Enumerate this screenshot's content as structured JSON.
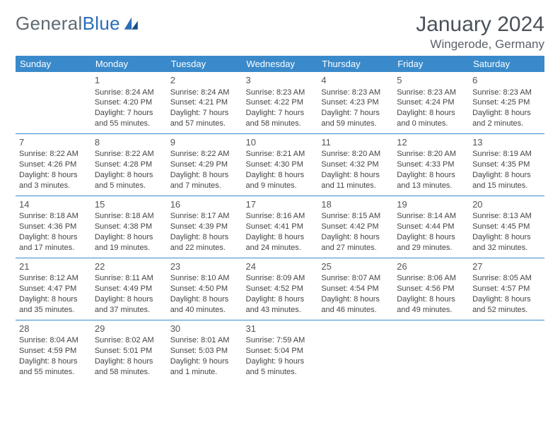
{
  "brand": {
    "word1": "General",
    "word2": "Blue"
  },
  "title": "January 2024",
  "location": "Wingerode, Germany",
  "columns": [
    "Sunday",
    "Monday",
    "Tuesday",
    "Wednesday",
    "Thursday",
    "Friday",
    "Saturday"
  ],
  "colors": {
    "header_bg": "#3a8acb",
    "header_text": "#ffffff",
    "separator": "#3a8acb",
    "text": "#444444",
    "title_color": "#4a525a",
    "logo_gray": "#5f6a72",
    "logo_blue": "#2a6db8",
    "background": "#ffffff"
  },
  "typography": {
    "title_fontsize": 30,
    "location_fontsize": 17,
    "dow_fontsize": 13,
    "daynum_fontsize": 13,
    "detail_fontsize": 11
  },
  "weeks": [
    [
      null,
      {
        "n": "1",
        "sunrise": "8:24 AM",
        "sunset": "4:20 PM",
        "daylight": "7 hours and 55 minutes."
      },
      {
        "n": "2",
        "sunrise": "8:24 AM",
        "sunset": "4:21 PM",
        "daylight": "7 hours and 57 minutes."
      },
      {
        "n": "3",
        "sunrise": "8:23 AM",
        "sunset": "4:22 PM",
        "daylight": "7 hours and 58 minutes."
      },
      {
        "n": "4",
        "sunrise": "8:23 AM",
        "sunset": "4:23 PM",
        "daylight": "7 hours and 59 minutes."
      },
      {
        "n": "5",
        "sunrise": "8:23 AM",
        "sunset": "4:24 PM",
        "daylight": "8 hours and 0 minutes."
      },
      {
        "n": "6",
        "sunrise": "8:23 AM",
        "sunset": "4:25 PM",
        "daylight": "8 hours and 2 minutes."
      }
    ],
    [
      {
        "n": "7",
        "sunrise": "8:22 AM",
        "sunset": "4:26 PM",
        "daylight": "8 hours and 3 minutes."
      },
      {
        "n": "8",
        "sunrise": "8:22 AM",
        "sunset": "4:28 PM",
        "daylight": "8 hours and 5 minutes."
      },
      {
        "n": "9",
        "sunrise": "8:22 AM",
        "sunset": "4:29 PM",
        "daylight": "8 hours and 7 minutes."
      },
      {
        "n": "10",
        "sunrise": "8:21 AM",
        "sunset": "4:30 PM",
        "daylight": "8 hours and 9 minutes."
      },
      {
        "n": "11",
        "sunrise": "8:20 AM",
        "sunset": "4:32 PM",
        "daylight": "8 hours and 11 minutes."
      },
      {
        "n": "12",
        "sunrise": "8:20 AM",
        "sunset": "4:33 PM",
        "daylight": "8 hours and 13 minutes."
      },
      {
        "n": "13",
        "sunrise": "8:19 AM",
        "sunset": "4:35 PM",
        "daylight": "8 hours and 15 minutes."
      }
    ],
    [
      {
        "n": "14",
        "sunrise": "8:18 AM",
        "sunset": "4:36 PM",
        "daylight": "8 hours and 17 minutes."
      },
      {
        "n": "15",
        "sunrise": "8:18 AM",
        "sunset": "4:38 PM",
        "daylight": "8 hours and 19 minutes."
      },
      {
        "n": "16",
        "sunrise": "8:17 AM",
        "sunset": "4:39 PM",
        "daylight": "8 hours and 22 minutes."
      },
      {
        "n": "17",
        "sunrise": "8:16 AM",
        "sunset": "4:41 PM",
        "daylight": "8 hours and 24 minutes."
      },
      {
        "n": "18",
        "sunrise": "8:15 AM",
        "sunset": "4:42 PM",
        "daylight": "8 hours and 27 minutes."
      },
      {
        "n": "19",
        "sunrise": "8:14 AM",
        "sunset": "4:44 PM",
        "daylight": "8 hours and 29 minutes."
      },
      {
        "n": "20",
        "sunrise": "8:13 AM",
        "sunset": "4:45 PM",
        "daylight": "8 hours and 32 minutes."
      }
    ],
    [
      {
        "n": "21",
        "sunrise": "8:12 AM",
        "sunset": "4:47 PM",
        "daylight": "8 hours and 35 minutes."
      },
      {
        "n": "22",
        "sunrise": "8:11 AM",
        "sunset": "4:49 PM",
        "daylight": "8 hours and 37 minutes."
      },
      {
        "n": "23",
        "sunrise": "8:10 AM",
        "sunset": "4:50 PM",
        "daylight": "8 hours and 40 minutes."
      },
      {
        "n": "24",
        "sunrise": "8:09 AM",
        "sunset": "4:52 PM",
        "daylight": "8 hours and 43 minutes."
      },
      {
        "n": "25",
        "sunrise": "8:07 AM",
        "sunset": "4:54 PM",
        "daylight": "8 hours and 46 minutes."
      },
      {
        "n": "26",
        "sunrise": "8:06 AM",
        "sunset": "4:56 PM",
        "daylight": "8 hours and 49 minutes."
      },
      {
        "n": "27",
        "sunrise": "8:05 AM",
        "sunset": "4:57 PM",
        "daylight": "8 hours and 52 minutes."
      }
    ],
    [
      {
        "n": "28",
        "sunrise": "8:04 AM",
        "sunset": "4:59 PM",
        "daylight": "8 hours and 55 minutes."
      },
      {
        "n": "29",
        "sunrise": "8:02 AM",
        "sunset": "5:01 PM",
        "daylight": "8 hours and 58 minutes."
      },
      {
        "n": "30",
        "sunrise": "8:01 AM",
        "sunset": "5:03 PM",
        "daylight": "9 hours and 1 minute."
      },
      {
        "n": "31",
        "sunrise": "7:59 AM",
        "sunset": "5:04 PM",
        "daylight": "9 hours and 5 minutes."
      },
      null,
      null,
      null
    ]
  ],
  "labels": {
    "sunrise": "Sunrise:",
    "sunset": "Sunset:",
    "daylight": "Daylight:"
  }
}
